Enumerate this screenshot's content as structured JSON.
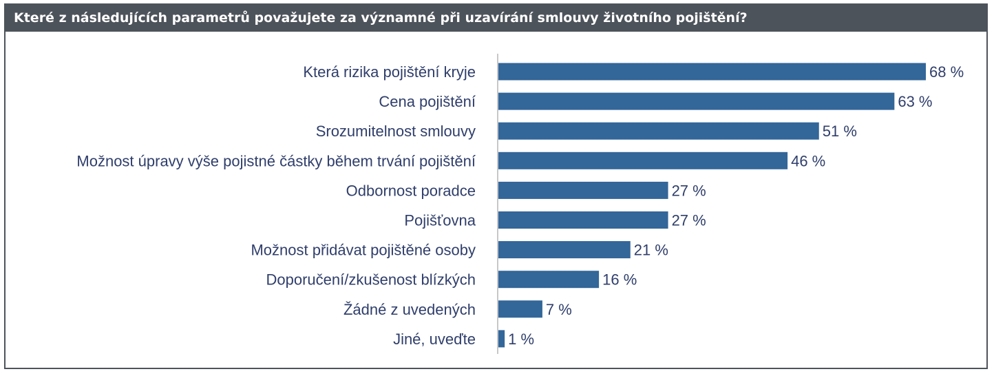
{
  "title": "Které z následujících parametrů považujete za významné při uzavírání smlouvy životního pojištění?",
  "chart_data": {
    "type": "bar",
    "orientation": "horizontal",
    "categories": [
      "Která rizika pojištění kryje",
      "Cena pojištění",
      "Srozumitelnost smlouvy",
      "Možnost úpravy výše pojistné částky během trvání pojištění",
      "Odbornost poradce",
      "Pojišťovna",
      "Možnost přidávat pojištěné osoby",
      "Doporučení/zkušenost blízkých",
      "Žádné z uvedených",
      "Jiné, uveďte"
    ],
    "values": [
      68,
      63,
      51,
      46,
      27,
      27,
      21,
      16,
      7,
      1
    ],
    "value_labels": [
      "68 %",
      "63 %",
      "51 %",
      "46 %",
      "27 %",
      "27 %",
      "21 %",
      "16 %",
      "7 %",
      "1 %"
    ],
    "unit": "%",
    "bar_color": "#336699",
    "grid": false,
    "legend": "none"
  }
}
